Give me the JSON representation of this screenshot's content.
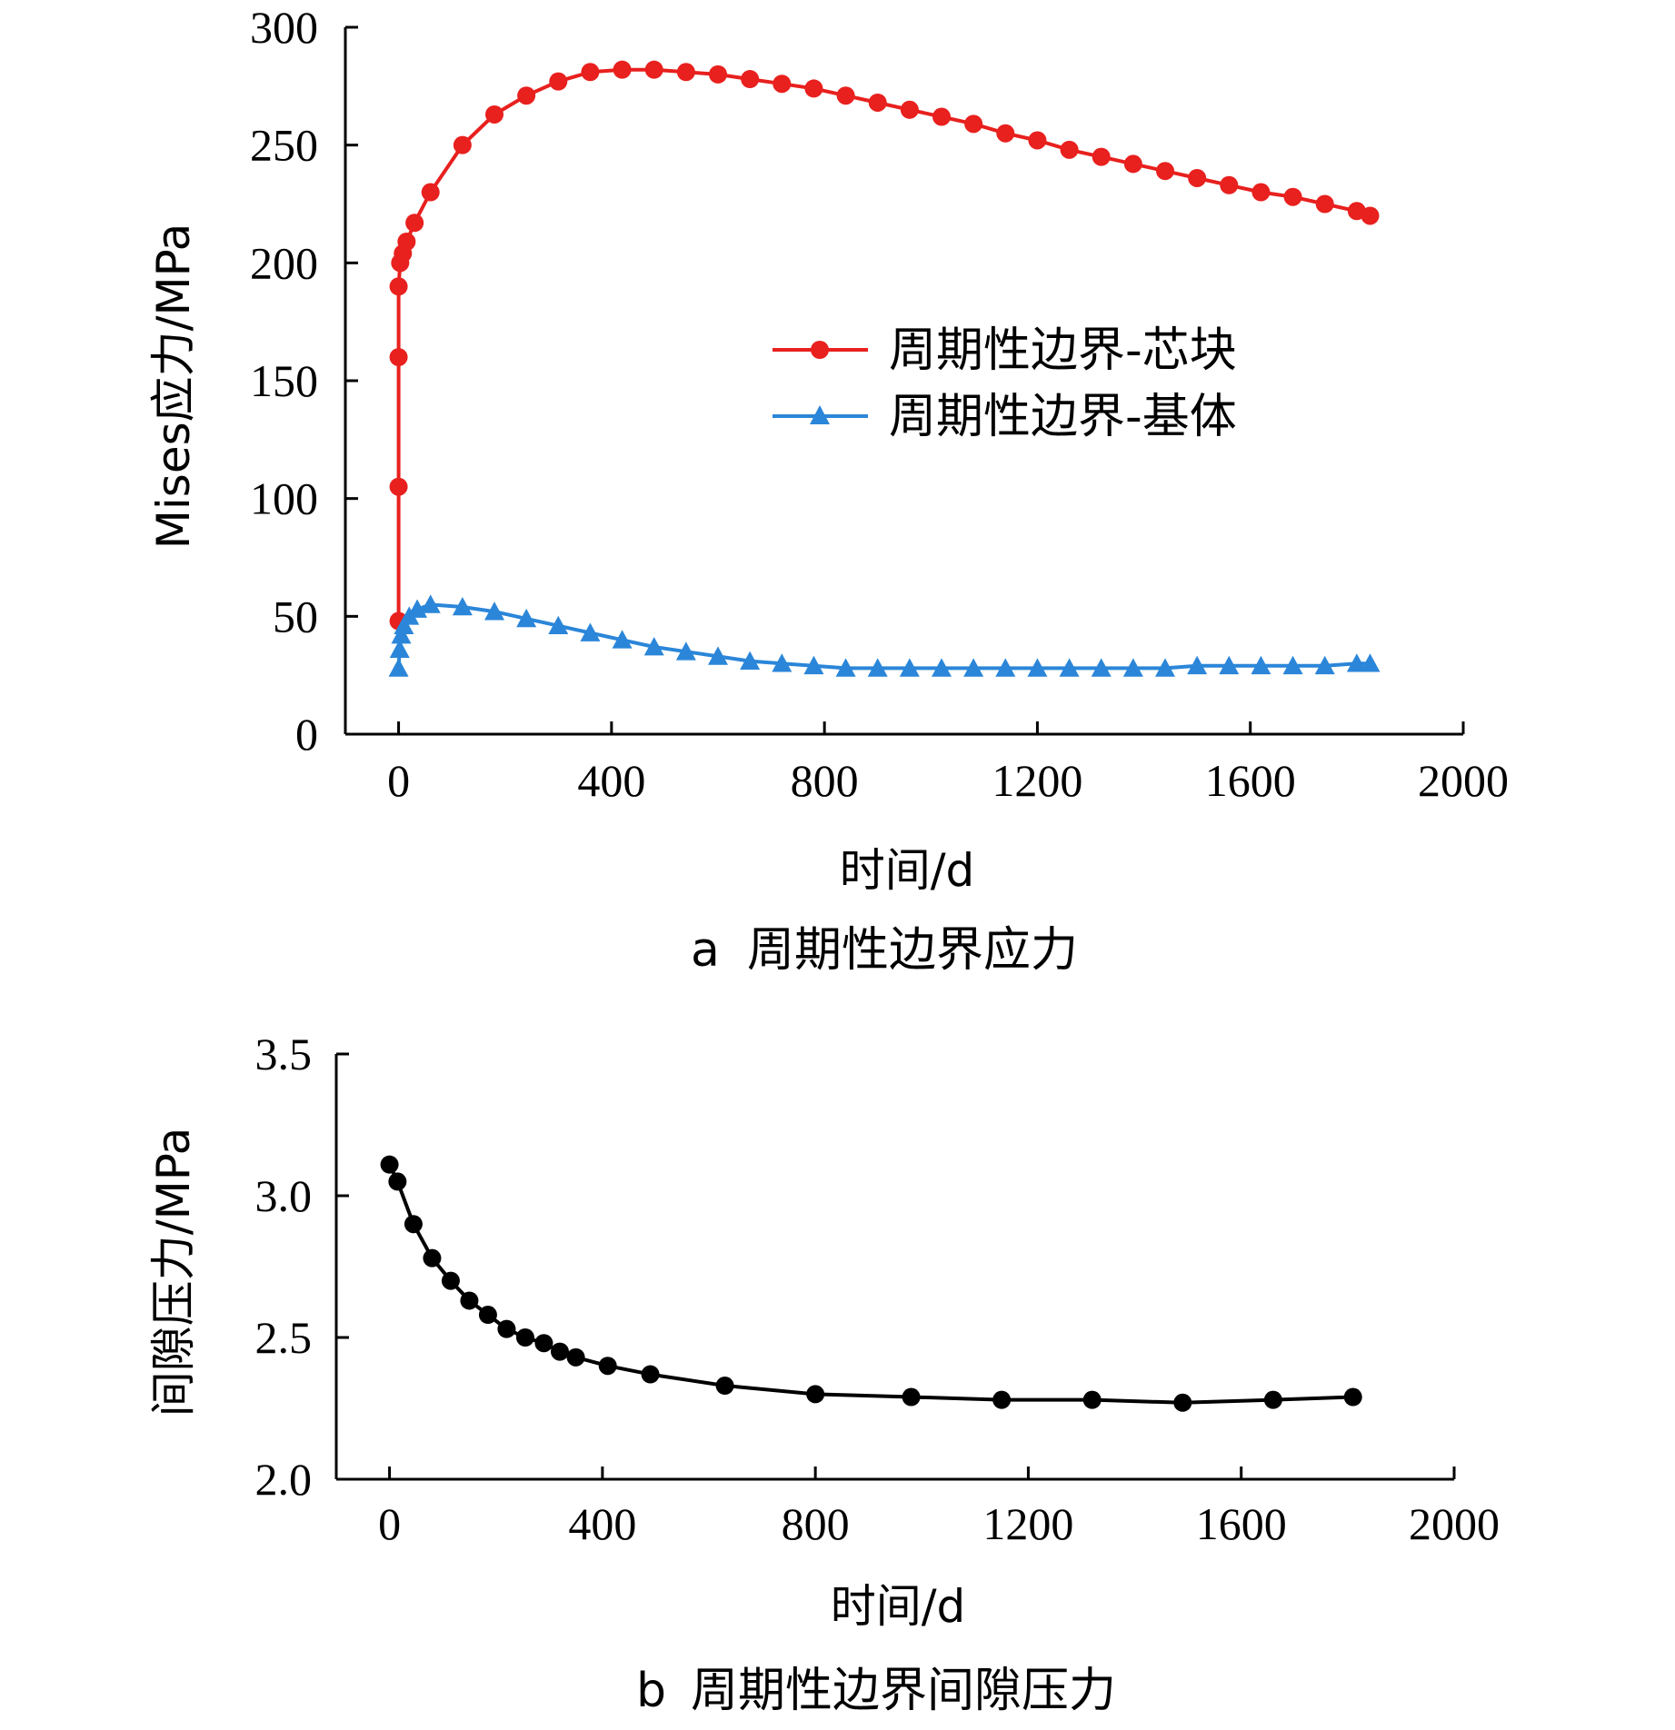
{
  "chart_data": [
    {
      "type": "line",
      "panel_label": "a",
      "caption": "周期性边界应力",
      "xlabel": "时间/d",
      "ylabel": "Mises应力/MPa",
      "xlim": [
        -100,
        2000
      ],
      "ylim": [
        0,
        300
      ],
      "xticks": [
        "0",
        "400",
        "800",
        "1200",
        "1600",
        "2000"
      ],
      "yticks": [
        "0",
        "50",
        "100",
        "150",
        "200",
        "250",
        "300"
      ],
      "legend_position": "center-right",
      "series": [
        {
          "name": "周期性边界-芯块",
          "color": "#e8201e",
          "marker": "circle",
          "x": [
            0,
            0,
            0,
            0,
            3,
            8,
            15,
            30,
            60,
            120,
            180,
            240,
            300,
            360,
            420,
            480,
            540,
            600,
            660,
            720,
            780,
            840,
            900,
            960,
            1020,
            1080,
            1140,
            1200,
            1260,
            1320,
            1380,
            1440,
            1500,
            1560,
            1620,
            1680,
            1740,
            1800,
            1825
          ],
          "y": [
            48,
            105,
            160,
            190,
            200,
            204,
            209,
            217,
            230,
            250,
            263,
            271,
            277,
            281,
            282,
            282,
            281,
            280,
            278,
            276,
            274,
            271,
            268,
            265,
            262,
            259,
            255,
            252,
            248,
            245,
            242,
            239,
            236,
            233,
            230,
            228,
            225,
            222,
            220
          ]
        },
        {
          "name": "周期性边界-基体",
          "color": "#2b86d9",
          "marker": "triangle",
          "x": [
            0,
            2,
            5,
            10,
            20,
            35,
            60,
            120,
            180,
            240,
            300,
            360,
            420,
            480,
            540,
            600,
            660,
            720,
            780,
            840,
            900,
            960,
            1020,
            1080,
            1140,
            1200,
            1260,
            1320,
            1380,
            1440,
            1500,
            1560,
            1620,
            1680,
            1740,
            1800,
            1825
          ],
          "y": [
            28,
            36,
            42,
            46,
            50,
            53,
            55,
            54,
            52,
            49,
            46,
            43,
            40,
            37,
            35,
            33,
            31,
            30,
            29,
            28,
            28,
            28,
            28,
            28,
            28,
            28,
            28,
            28,
            28,
            28,
            29,
            29,
            29,
            29,
            29,
            30,
            30
          ]
        }
      ]
    },
    {
      "type": "line",
      "panel_label": "b",
      "caption": "周期性边界间隙压力",
      "xlabel": "时间/d",
      "ylabel": "间隙压力/MPa",
      "xlim": [
        -100,
        2000
      ],
      "ylim": [
        2.0,
        3.5
      ],
      "xticks": [
        "0",
        "400",
        "800",
        "1200",
        "1600",
        "2000"
      ],
      "yticks": [
        "2.0",
        "2.5",
        "3.0",
        "3.5"
      ],
      "series": [
        {
          "color": "#000000",
          "marker": "circle",
          "x": [
            0,
            15,
            45,
            80,
            115,
            150,
            185,
            220,
            255,
            290,
            320,
            350,
            410,
            490,
            630,
            800,
            980,
            1150,
            1320,
            1490,
            1660,
            1810
          ],
          "y": [
            3.11,
            3.05,
            2.9,
            2.78,
            2.7,
            2.63,
            2.58,
            2.53,
            2.5,
            2.48,
            2.45,
            2.43,
            2.4,
            2.37,
            2.33,
            2.3,
            2.29,
            2.28,
            2.28,
            2.27,
            2.28,
            2.29
          ]
        }
      ]
    }
  ]
}
